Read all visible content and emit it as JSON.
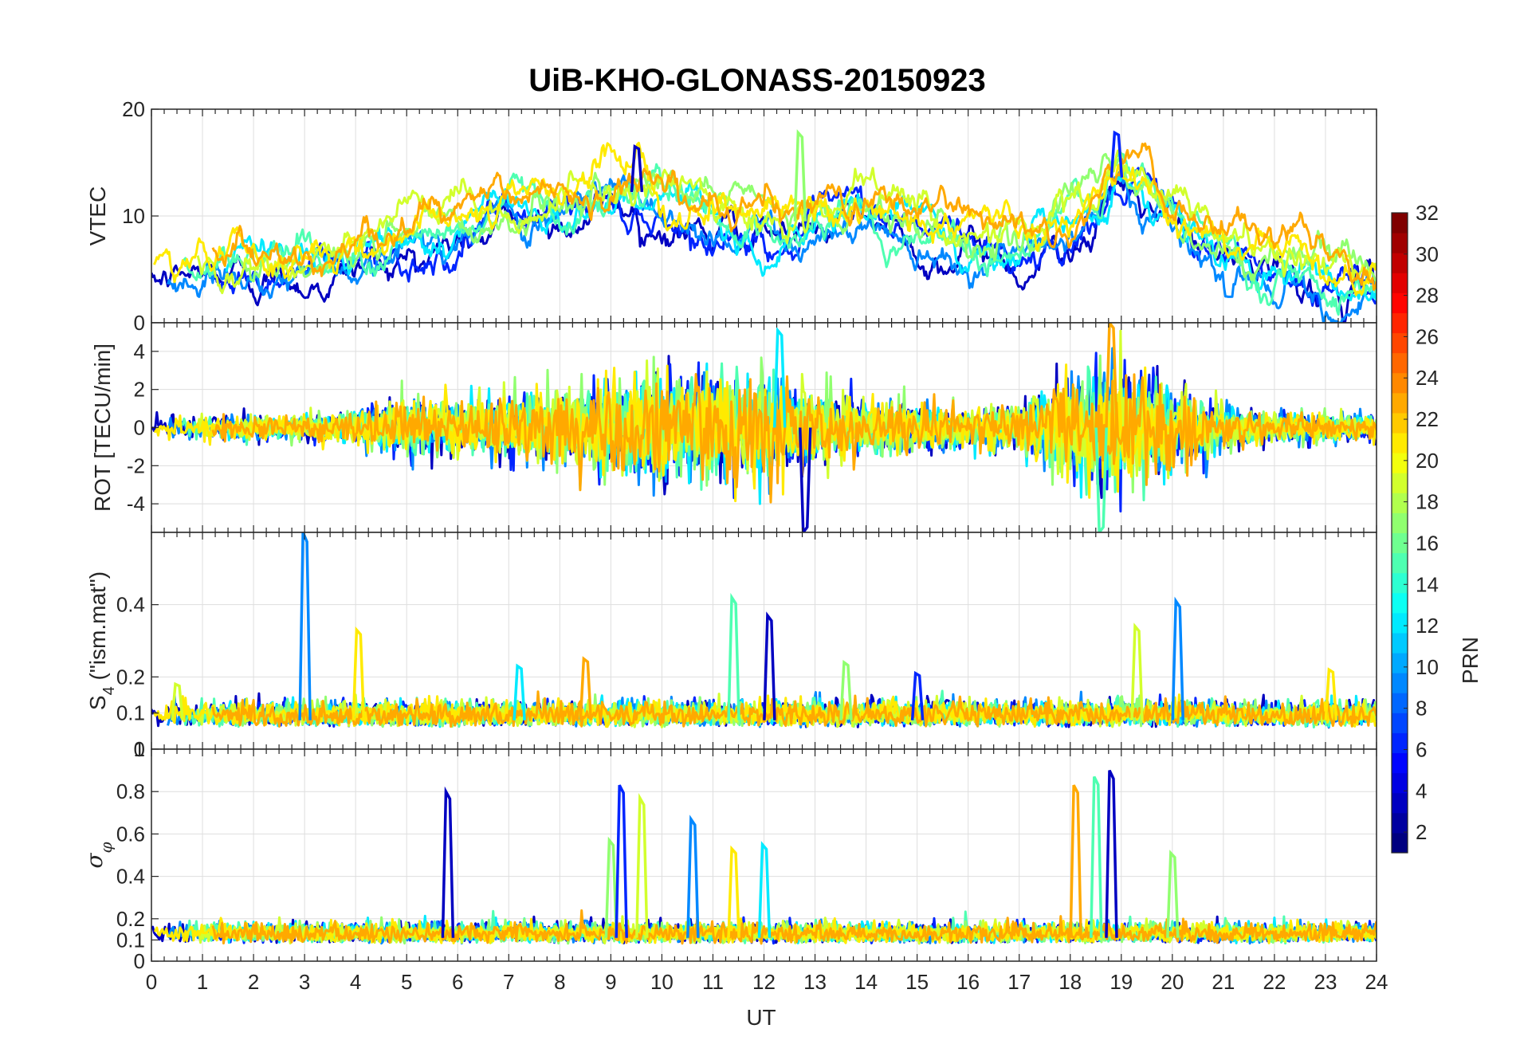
{
  "chart_data": {
    "type": "line",
    "title": "UiB-KHO-GLONASS-20150923",
    "xlabel": "UT",
    "xlim": [
      0,
      24
    ],
    "xticks": [
      "0",
      "1",
      "2",
      "3",
      "4",
      "5",
      "6",
      "7",
      "8",
      "9",
      "10",
      "11",
      "12",
      "13",
      "14",
      "15",
      "16",
      "17",
      "18",
      "19",
      "20",
      "21",
      "22",
      "23",
      "24"
    ],
    "grid": true,
    "color_by": "PRN",
    "colorbar": {
      "label": "PRN",
      "colormap": "jet",
      "range": [
        1,
        32
      ],
      "ticks": [
        "2",
        "4",
        "6",
        "8",
        "10",
        "12",
        "14",
        "16",
        "18",
        "20",
        "22",
        "24",
        "26",
        "28",
        "30",
        "32"
      ]
    },
    "panels": [
      {
        "ylabel": "VTEC",
        "ylim": [
          0,
          20
        ],
        "yticks": [
          "0",
          "10",
          "20"
        ],
        "ytick_values": [
          0,
          10,
          20
        ],
        "envelope": {
          "x": [
            0,
            1,
            2,
            3,
            4,
            5,
            6,
            7,
            8,
            9,
            10,
            11,
            12,
            13,
            14,
            15,
            16,
            17,
            18,
            19,
            20,
            21,
            22,
            23,
            24
          ],
          "y": [
            5.0,
            5.5,
            5.8,
            6.2,
            6.8,
            7.8,
            9.2,
            10.5,
            11.5,
            12.5,
            12.0,
            10.0,
            9.5,
            9.5,
            10.0,
            9.5,
            9.0,
            7.0,
            10.0,
            14.0,
            9.5,
            7.0,
            5.5,
            5.0,
            4.0
          ]
        },
        "visible_peaks": [
          {
            "x": 9.5,
            "y": 16.5
          },
          {
            "x": 12.7,
            "y": 17.8
          },
          {
            "x": 18.9,
            "y": 17.8
          }
        ]
      },
      {
        "ylabel": "ROT [TECU/min]",
        "ylim": [
          -5.5,
          5.5
        ],
        "yticks": [
          "-4",
          "-2",
          "0",
          "2",
          "4"
        ],
        "ytick_values": [
          -4,
          -2,
          0,
          2,
          4
        ],
        "envelope": {
          "x": [
            0,
            1,
            2,
            3,
            4,
            5,
            6,
            7,
            8,
            9,
            10,
            11,
            12,
            13,
            14,
            15,
            16,
            17,
            18,
            19,
            20,
            21,
            22,
            23,
            24
          ],
          "y": [
            0.6,
            0.6,
            0.7,
            0.7,
            0.9,
            1.5,
            1.6,
            1.8,
            2.2,
            2.6,
            3.5,
            3.2,
            2.8,
            2.0,
            1.6,
            1.4,
            1.0,
            1.4,
            2.8,
            3.5,
            2.5,
            1.2,
            0.8,
            0.8,
            0.7
          ]
        },
        "visible_peaks": [
          {
            "x": 12.3,
            "y": 5.1
          },
          {
            "x": 18.8,
            "y": 5.5
          },
          {
            "x": 18.6,
            "y": -5.5
          },
          {
            "x": 12.8,
            "y": -5.5
          }
        ]
      },
      {
        "ylabel": "S4 (\"ism.mat\")",
        "ylabel_main": "S",
        "ylabel_sub": "4",
        "ylabel_rest": " (\"ism.mat\")",
        "ylim": [
          0,
          0.6
        ],
        "yticks": [
          "0",
          "0.1",
          "0.2",
          "0.4"
        ],
        "ytick_values": [
          0,
          0.1,
          0.2,
          0.4
        ],
        "baseline": 0.08,
        "visible_peaks": [
          {
            "x": 0.5,
            "y": 0.18
          },
          {
            "x": 3.0,
            "y": 0.6
          },
          {
            "x": 4.05,
            "y": 0.33
          },
          {
            "x": 7.2,
            "y": 0.23
          },
          {
            "x": 8.5,
            "y": 0.25
          },
          {
            "x": 11.4,
            "y": 0.42
          },
          {
            "x": 12.1,
            "y": 0.37
          },
          {
            "x": 13.6,
            "y": 0.24
          },
          {
            "x": 15.0,
            "y": 0.21
          },
          {
            "x": 19.3,
            "y": 0.34
          },
          {
            "x": 20.1,
            "y": 0.41
          },
          {
            "x": 23.1,
            "y": 0.22
          }
        ]
      },
      {
        "ylabel": "σφ",
        "ylabel_main": "σ",
        "ylabel_sub": "φ",
        "ylim": [
          0,
          1
        ],
        "yticks": [
          "0",
          "0.1",
          "0.2",
          "0.4",
          "0.6",
          "0.8",
          "1"
        ],
        "ytick_values": [
          0,
          0.1,
          0.2,
          0.4,
          0.6,
          0.8,
          1
        ],
        "baseline": 0.11,
        "visible_peaks": [
          {
            "x": 5.8,
            "y": 0.8
          },
          {
            "x": 9.0,
            "y": 0.57
          },
          {
            "x": 9.2,
            "y": 0.83
          },
          {
            "x": 9.6,
            "y": 0.77
          },
          {
            "x": 10.6,
            "y": 0.67
          },
          {
            "x": 11.4,
            "y": 0.53
          },
          {
            "x": 12.0,
            "y": 0.55
          },
          {
            "x": 18.1,
            "y": 0.83
          },
          {
            "x": 18.5,
            "y": 0.87
          },
          {
            "x": 18.8,
            "y": 0.9
          },
          {
            "x": 20.0,
            "y": 0.51
          }
        ]
      }
    ]
  }
}
